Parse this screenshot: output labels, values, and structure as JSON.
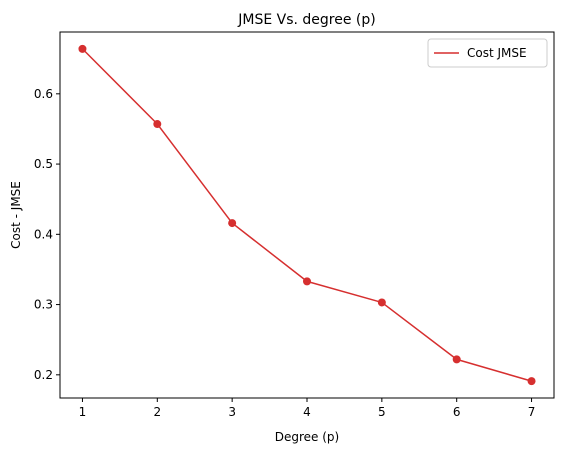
{
  "chart_data": {
    "type": "line",
    "title": "JMSE Vs. degree (p)",
    "xlabel": "Degree (p)",
    "ylabel": "Cost - JMSE",
    "x": [
      1,
      2,
      3,
      4,
      5,
      6,
      7
    ],
    "series": [
      {
        "name": "Cost JMSE",
        "values": [
          0.664,
          0.557,
          0.416,
          0.333,
          0.303,
          0.222,
          0.191
        ],
        "color": "#d62f2f",
        "marker": "circle"
      }
    ],
    "xlim": [
      0.7,
      7.3
    ],
    "ylim": [
      0.167,
      0.688
    ],
    "xticks": [
      1,
      2,
      3,
      4,
      5,
      6,
      7
    ],
    "yticks": [
      0.2,
      0.3,
      0.4,
      0.5,
      0.6
    ],
    "ytick_labels": [
      "0.2",
      "0.3",
      "0.4",
      "0.5",
      "0.6"
    ],
    "grid": false,
    "legend": "top-right"
  }
}
